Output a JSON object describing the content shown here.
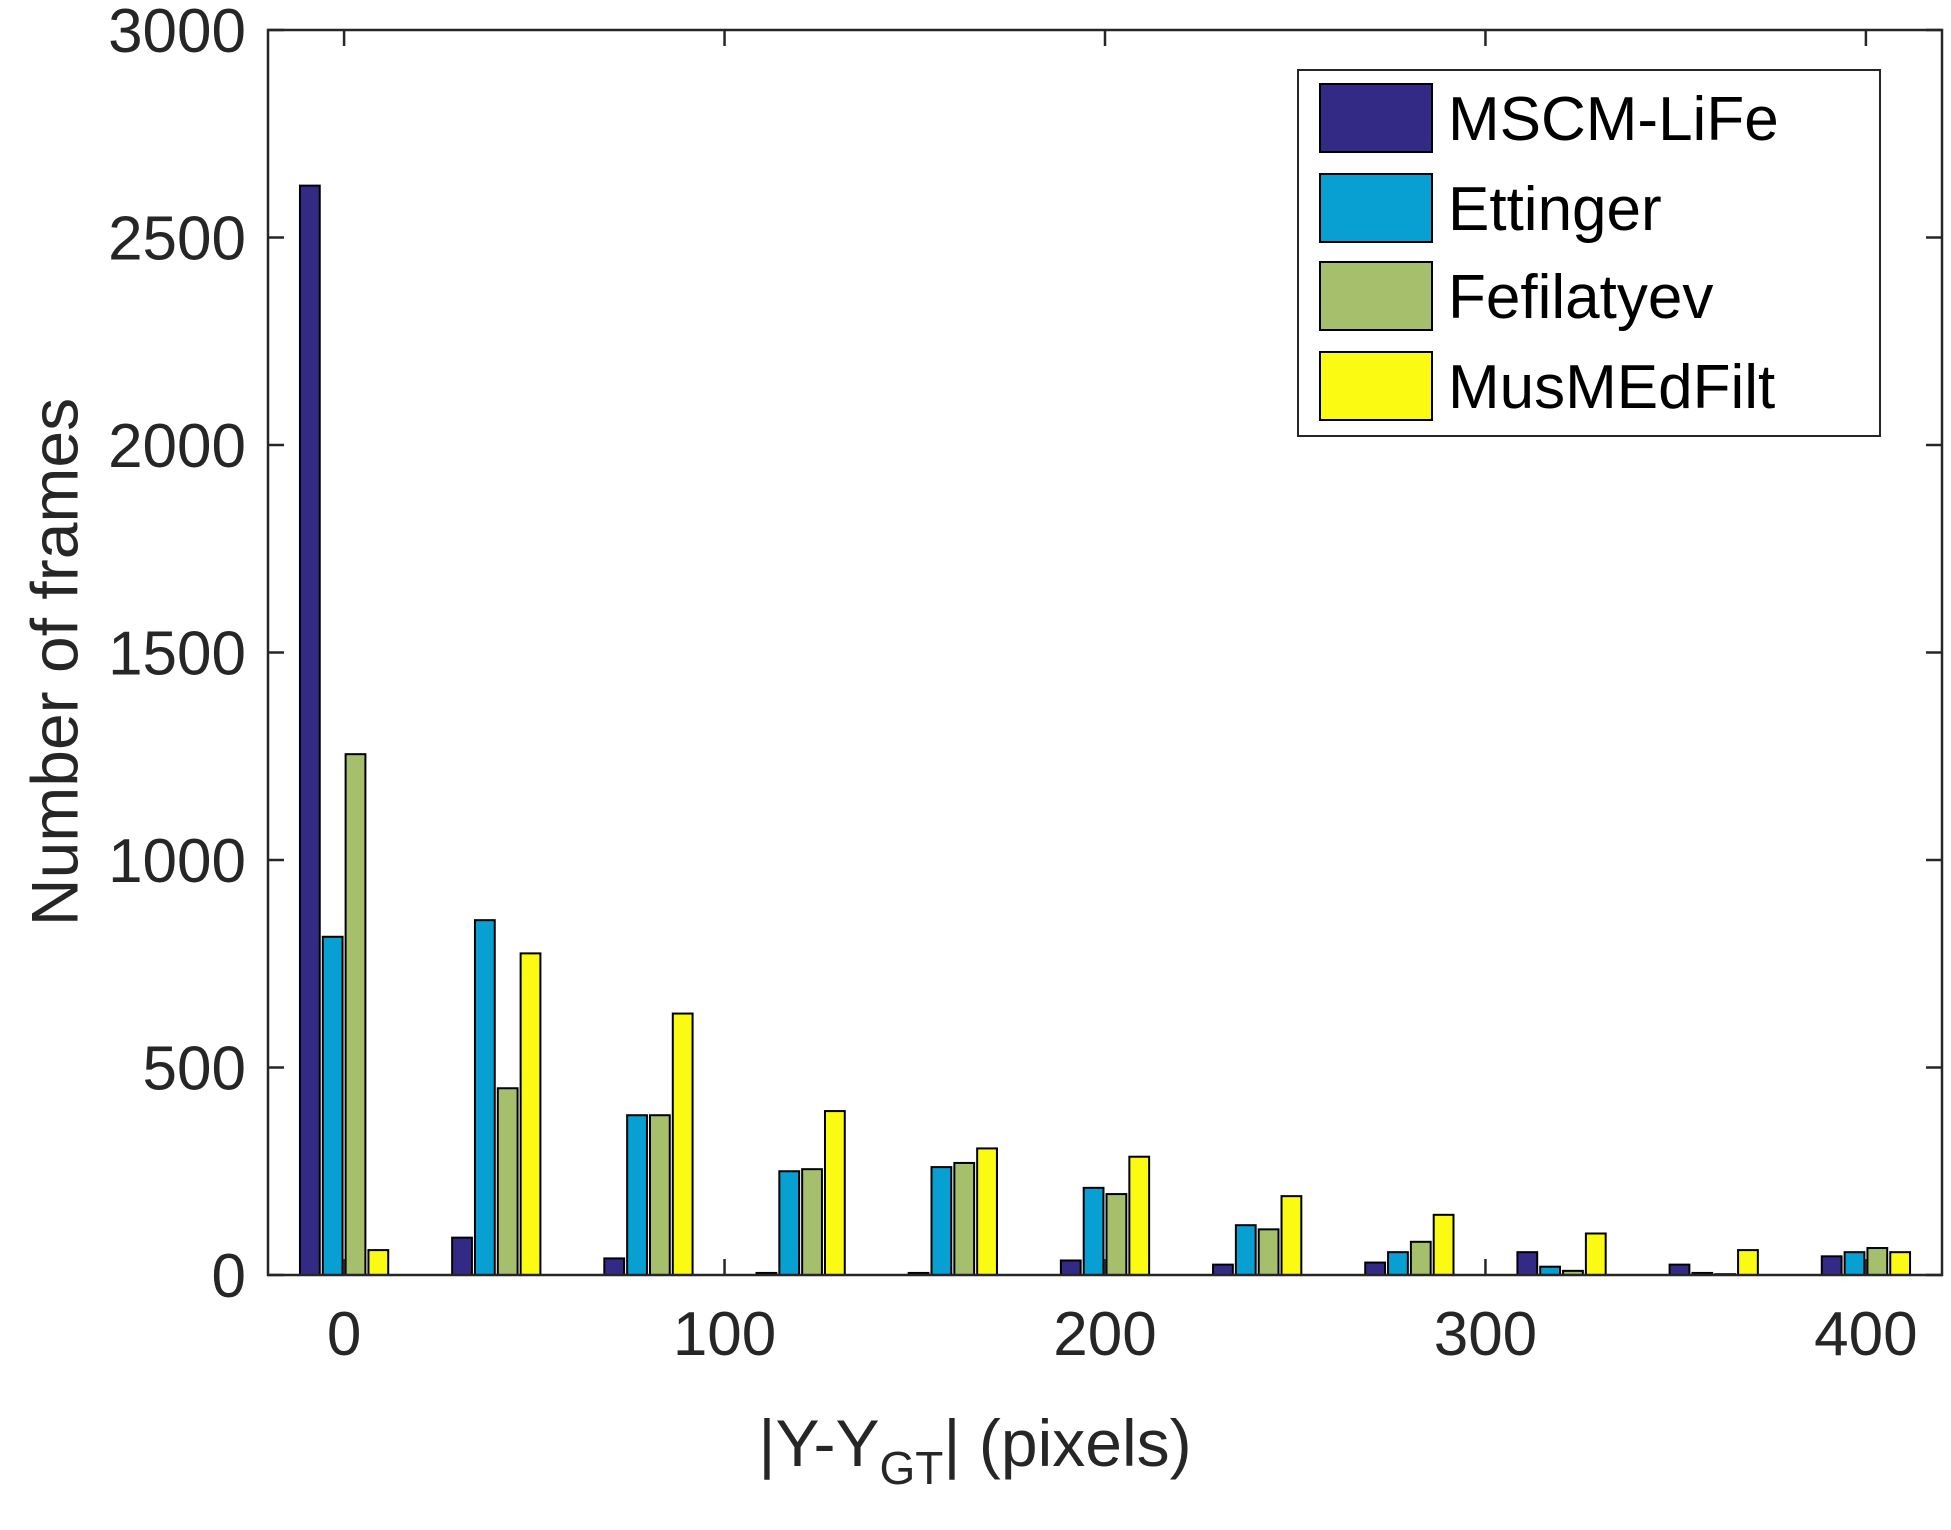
{
  "chart_data": {
    "type": "bar",
    "title": "",
    "xlabel_main": "|Y-Y",
    "xlabel_sub": "GT",
    "xlabel_tail": "| (pixels)",
    "ylabel": "Number of frames",
    "xlim": [
      -20,
      420
    ],
    "ylim": [
      0,
      3000
    ],
    "xticks": [
      0,
      100,
      200,
      300,
      400
    ],
    "xtick_labels": [
      "0",
      "100",
      "200",
      "300",
      "400"
    ],
    "yticks": [
      0,
      500,
      1000,
      1500,
      2000,
      2500,
      3000
    ],
    "ytick_labels": [
      "0",
      "500",
      "1000",
      "1500",
      "2000",
      "2500",
      "3000"
    ],
    "categories": [
      0,
      40,
      80,
      120,
      160,
      200,
      240,
      280,
      320,
      360,
      400
    ],
    "bar_width": 6,
    "series": [
      {
        "name": "MSCM-LiFe",
        "color": "#332a86",
        "values": [
          2625,
          90,
          40,
          5,
          5,
          35,
          25,
          30,
          55,
          25,
          45
        ]
      },
      {
        "name": "Ettinger",
        "color": "#08a0d2",
        "values": [
          815,
          855,
          385,
          250,
          260,
          210,
          120,
          55,
          20,
          5,
          55
        ]
      },
      {
        "name": "Fefilatyev",
        "color": "#a5bf6c",
        "values": [
          1255,
          450,
          385,
          255,
          270,
          195,
          110,
          80,
          10,
          2,
          65
        ]
      },
      {
        "name": "MusMEdFilt",
        "color": "#fafa12",
        "values": [
          60,
          775,
          630,
          395,
          305,
          285,
          190,
          145,
          100,
          60,
          55
        ]
      }
    ],
    "legend_position": "top-right",
    "grid": false
  }
}
